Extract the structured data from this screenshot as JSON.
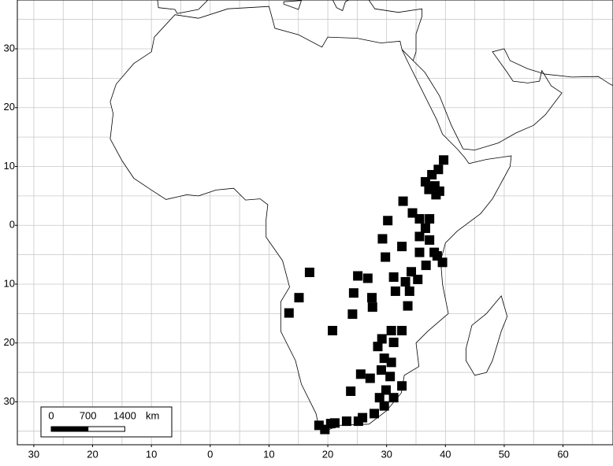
{
  "chart_data": {
    "type": "scatter",
    "x": [
      39.7,
      38.8,
      37.7,
      36.6,
      38.2,
      39.0,
      38.4,
      37.2,
      32.8,
      34.4,
      35.6,
      37.3,
      30.2,
      36.6,
      35.6,
      37.3,
      29.3,
      32.6,
      38.1,
      35.6,
      38.6,
      39.5,
      36.7,
      29.8,
      34.2,
      35.3,
      33.2,
      31.2,
      33.9,
      31.5,
      33.6,
      25.1,
      26.8,
      16.9,
      15.1,
      13.4,
      24.4,
      27.5,
      27.6,
      24.2,
      20.8,
      30.8,
      32.6,
      29.2,
      31.2,
      28.5,
      29.6,
      30.8,
      29.1,
      25.6,
      27.2,
      30.6,
      32.6,
      23.9,
      29.9,
      31.2,
      29.6,
      27.9,
      25.9,
      23.2,
      20.5,
      18.5,
      19.5,
      21.2,
      25.2,
      28.8
    ],
    "y": [
      11.1,
      9.5,
      8.6,
      7.4,
      6.7,
      5.8,
      5.2,
      6.1,
      4.1,
      2.1,
      1.1,
      1.1,
      0.8,
      -0.5,
      -1.9,
      -2.5,
      -2.3,
      -3.6,
      -4.6,
      -4.6,
      -5.2,
      -6.3,
      -6.8,
      -5.4,
      -7.9,
      -9.2,
      -9.6,
      -8.8,
      -11.2,
      -11.2,
      -13.7,
      -8.6,
      -9.0,
      -8.0,
      -12.3,
      -14.9,
      -11.5,
      -12.3,
      -13.9,
      -15.1,
      -17.9,
      -17.9,
      -17.9,
      -19.3,
      -19.9,
      -20.6,
      -22.6,
      -23.3,
      -24.6,
      -25.3,
      -26.0,
      -25.7,
      -27.3,
      -28.2,
      -28.0,
      -29.3,
      -30.7,
      -32.0,
      -32.7,
      -33.3,
      -33.7,
      -34.0,
      -34.7,
      -33.6,
      -33.3,
      -29.3
    ],
    "color": "#000000",
    "xlim": [
      -32.8,
      68.5
    ],
    "ylim": [
      -37.3,
      38.3
    ],
    "xticks": [
      {
        "value": -30,
        "label": "30"
      },
      {
        "value": -20,
        "label": "20"
      },
      {
        "value": -10,
        "label": "10"
      },
      0,
      10,
      20,
      30,
      40,
      50,
      60
    ],
    "yticks": [
      30,
      20,
      10,
      0,
      {
        "value": -10,
        "label": "10"
      },
      {
        "value": -20,
        "label": "20"
      },
      {
        "value": -30,
        "label": "30"
      }
    ],
    "grid_step": 5,
    "scale_bar": {
      "ticks": [
        0,
        700,
        1400
      ],
      "unit": "km"
    }
  }
}
